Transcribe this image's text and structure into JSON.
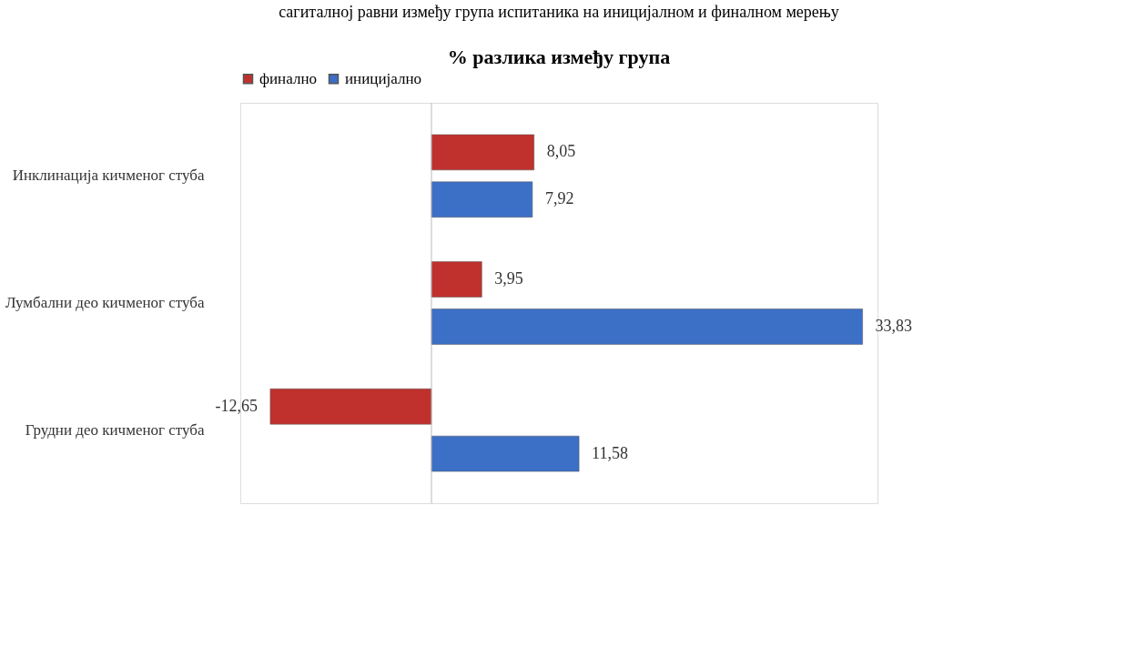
{
  "chart_data": {
    "type": "bar",
    "orientation": "horizontal",
    "title": "% разлика између група",
    "annotations": [
      "сагиталној равни између група испитаника на иницијалном и финалном мерењу"
    ],
    "categories": [
      "Инклинација кичменог стуба",
      "Лумбални део кичменог стуба",
      "Грудни део кичменог стуба"
    ],
    "series": [
      {
        "name": "финално",
        "color": "#c0312d",
        "values": [
          8.05,
          3.95,
          -12.65
        ],
        "value_labels": [
          "8,05",
          "3,95",
          "-12,65"
        ]
      },
      {
        "name": "иницијално",
        "color": "#3c6fc6",
        "values": [
          7.92,
          33.83,
          11.58
        ],
        "value_labels": [
          "7,92",
          "33,83",
          "11,58"
        ]
      }
    ],
    "legend": "top",
    "grid": false
  }
}
